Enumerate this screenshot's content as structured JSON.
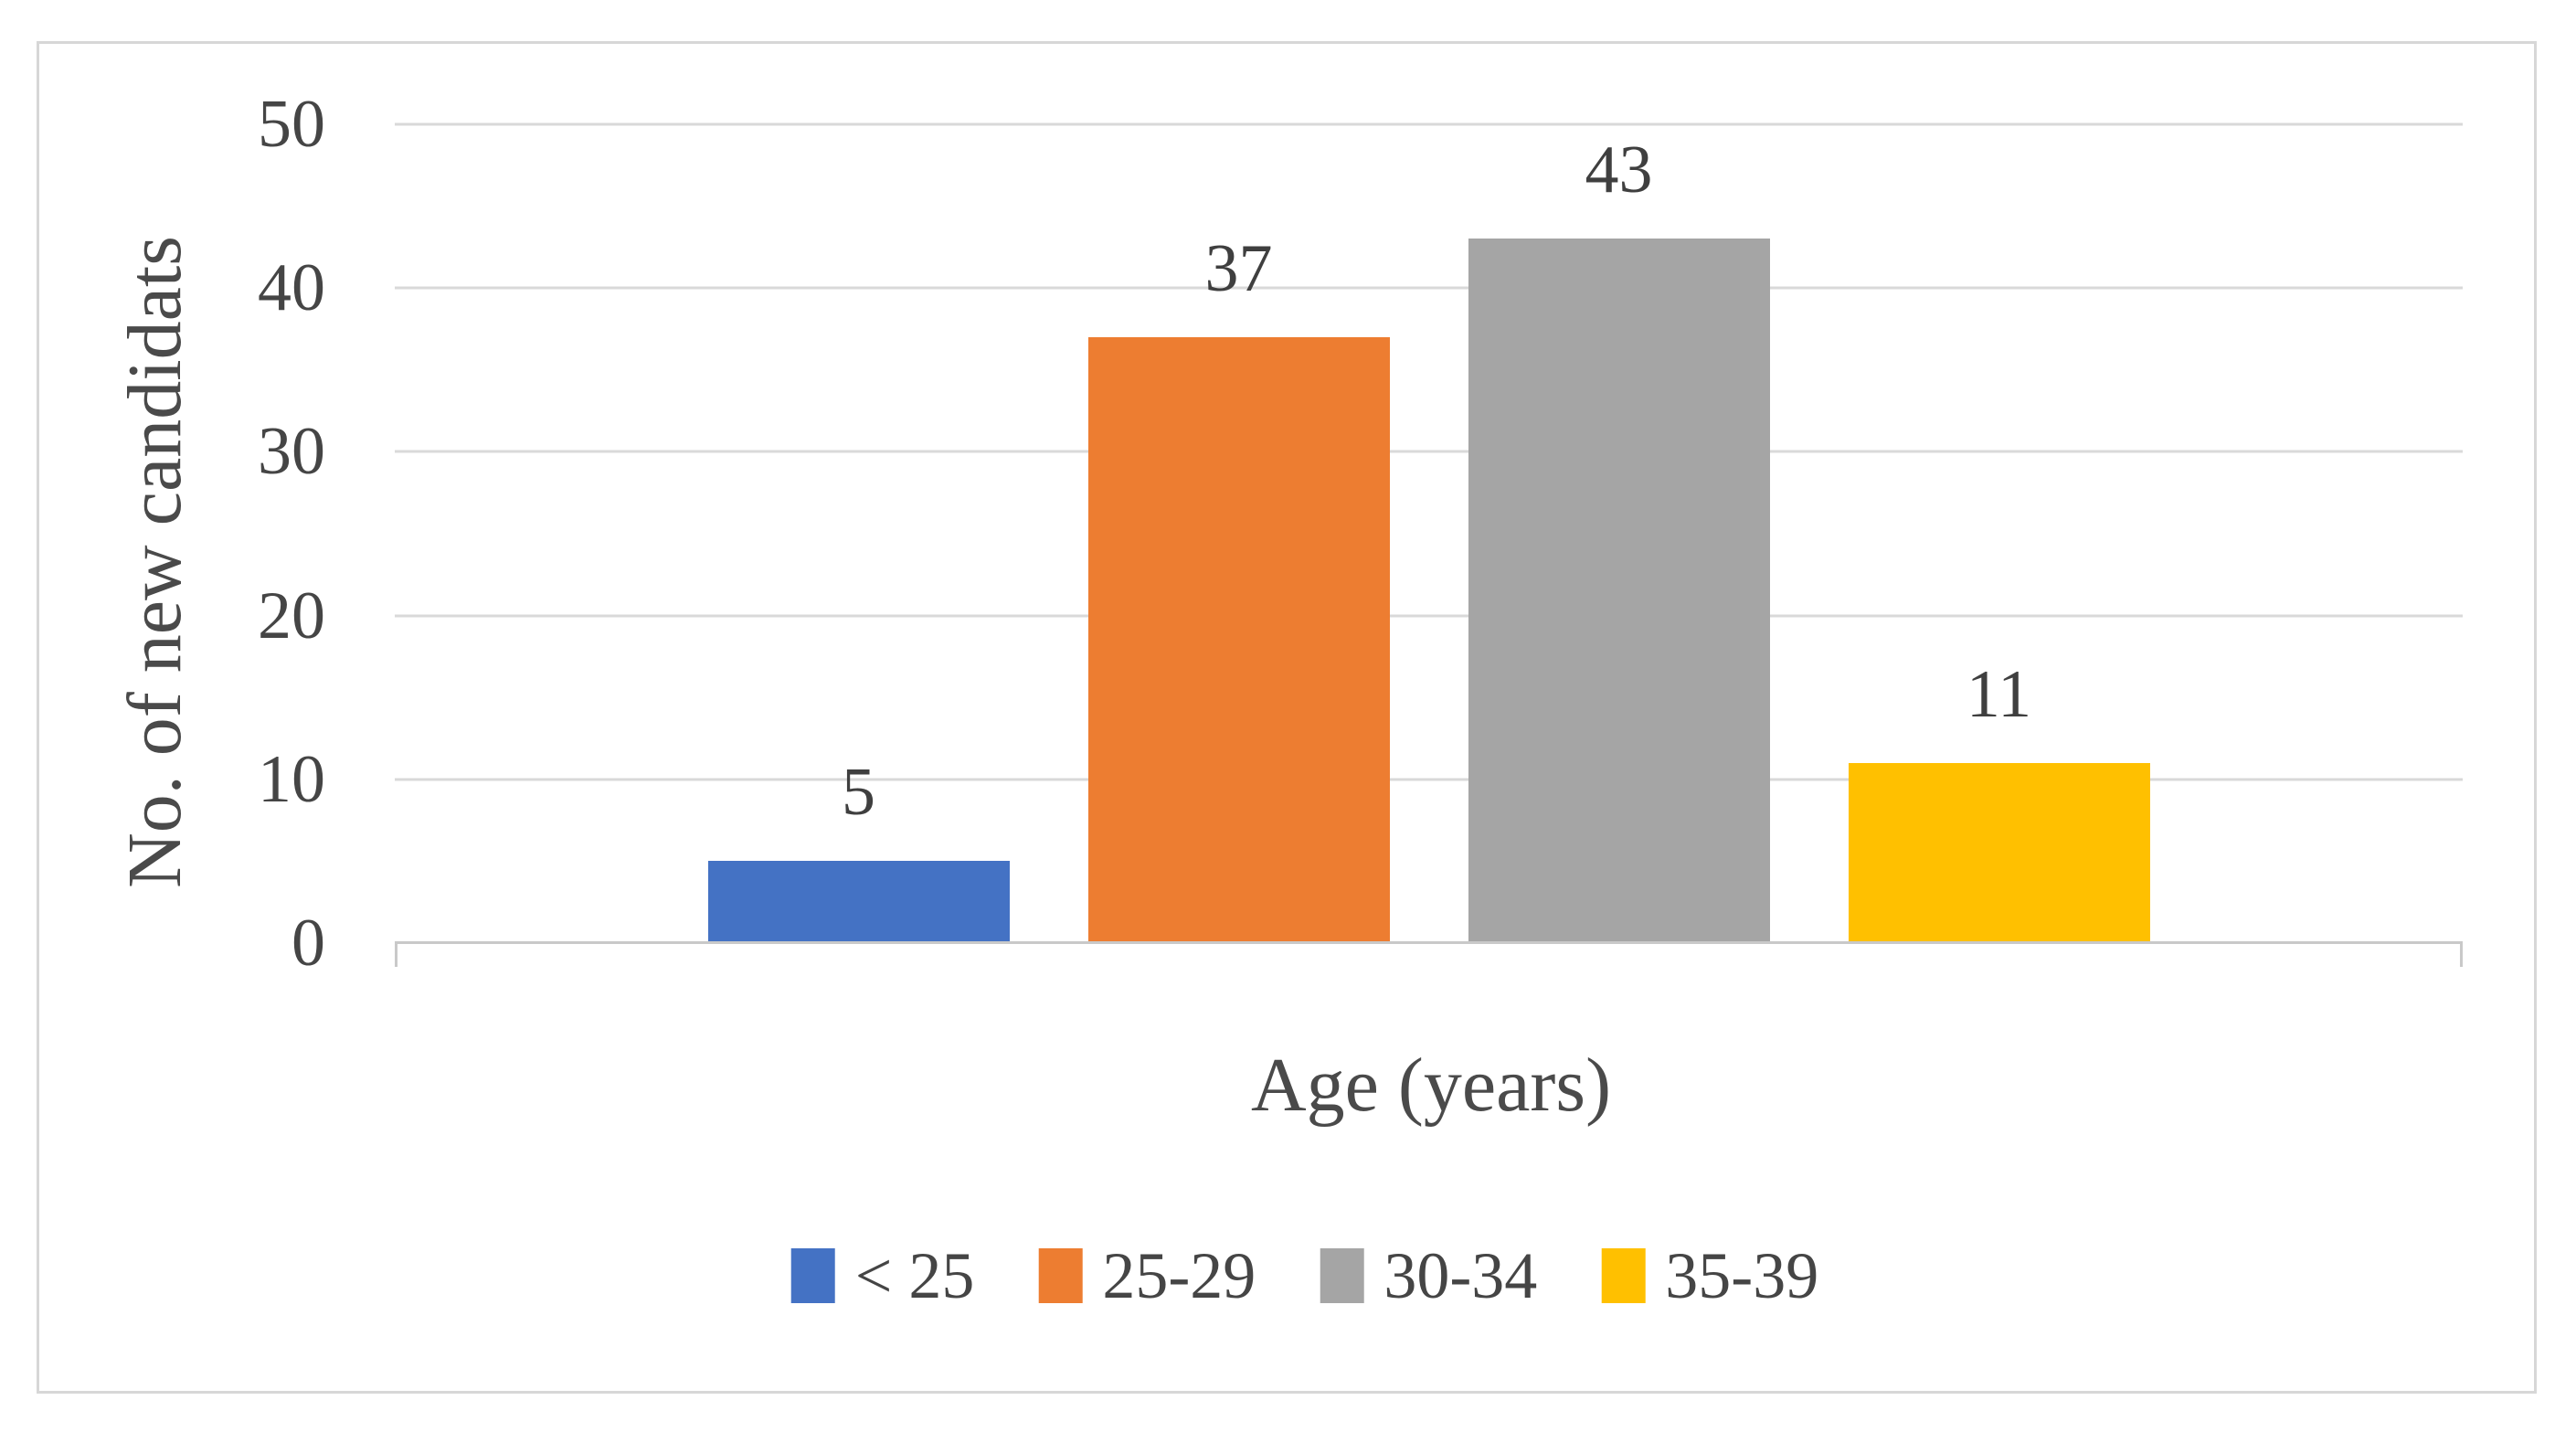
{
  "chart_data": {
    "type": "bar",
    "title": "",
    "categories": [
      "< 25",
      "25-29",
      "30-34",
      "35-39"
    ],
    "values": [
      5,
      37,
      43,
      11
    ],
    "data_labels": [
      "5",
      "37",
      "43",
      "11"
    ],
    "colors": [
      "#4472C4",
      "#ED7D31",
      "#A5A5A5",
      "#FFC000"
    ],
    "xlabel": "Age (years)",
    "ylabel": "No. of new candidats",
    "ylim": [
      0,
      50
    ],
    "yticks": [
      0,
      10,
      20,
      30,
      40,
      50
    ],
    "grid": "horizontal",
    "gridline_color": "#D9D9D9",
    "axis_line_color": "#C9C9C9",
    "frame_border_color": "#D7D7D7",
    "text_color": "#454545",
    "legend_position": "bottom"
  }
}
